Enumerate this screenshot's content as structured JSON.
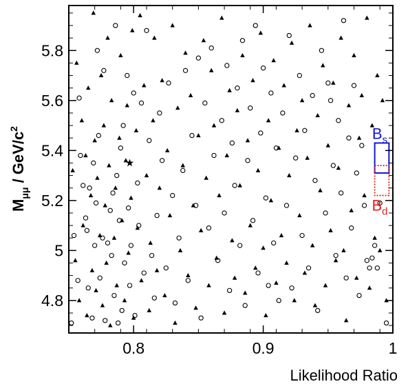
{
  "chart_data": {
    "type": "scatter",
    "title": "",
    "xlabel": "Likelihood Ratio",
    "ylabel": {
      "main": "M",
      "sub": "μμ",
      "rest": " / GeV/c",
      "sup": "2"
    },
    "xlim": [
      0.75,
      1.0
    ],
    "ylim": [
      4.67,
      5.98
    ],
    "grid": false,
    "x_ticks": [
      {
        "v": 0.8,
        "label": "0.8"
      },
      {
        "v": 0.9,
        "label": "0.9"
      },
      {
        "v": 1.0,
        "label": "1"
      }
    ],
    "y_ticks": [
      {
        "v": 4.8,
        "label": "4.8"
      },
      {
        "v": 5.0,
        "label": "5"
      },
      {
        "v": 5.2,
        "label": "5.2"
      },
      {
        "v": 5.4,
        "label": "5.4"
      },
      {
        "v": 5.6,
        "label": "5.6"
      },
      {
        "v": 5.8,
        "label": "5.8"
      }
    ],
    "signal_boxes": [
      {
        "label": "B",
        "sub": "s",
        "x_range": [
          0.986,
          0.997
        ],
        "y_range": [
          5.31,
          5.43
        ],
        "color": "#1414d2",
        "style": "solid"
      },
      {
        "label": "B",
        "sub": "d",
        "x_range": [
          0.986,
          0.997
        ],
        "y_range": [
          5.22,
          5.34
        ],
        "color": "#e61e1e",
        "style": "dotted"
      }
    ],
    "series": [
      {
        "marker": "circle-open",
        "points": [
          [
            0.752,
            4.71
          ],
          [
            0.754,
            5.06
          ],
          [
            0.757,
            4.88
          ],
          [
            0.758,
            5.61
          ],
          [
            0.759,
            5.38
          ],
          [
            0.761,
            5.26
          ],
          [
            0.763,
            5.13
          ],
          [
            0.764,
            5.08
          ],
          [
            0.765,
            4.85
          ],
          [
            0.766,
            5.25
          ],
          [
            0.768,
            4.73
          ],
          [
            0.769,
            5.35
          ],
          [
            0.77,
            5.02
          ],
          [
            0.771,
            5.19
          ],
          [
            0.772,
            5.8
          ],
          [
            0.773,
            5.46
          ],
          [
            0.774,
            4.89
          ],
          [
            0.776,
            5.05
          ],
          [
            0.777,
            5.72
          ],
          [
            0.778,
            4.72
          ],
          [
            0.78,
            5.03
          ],
          [
            0.782,
            5.16
          ],
          [
            0.783,
            4.98
          ],
          [
            0.784,
            5.23
          ],
          [
            0.785,
            4.82
          ],
          [
            0.786,
            5.9
          ],
          [
            0.787,
            5.3
          ],
          [
            0.788,
            4.71
          ],
          [
            0.789,
            5.12
          ],
          [
            0.79,
            5.41
          ],
          [
            0.791,
            4.76
          ],
          [
            0.792,
            5.5
          ],
          [
            0.793,
            4.95
          ],
          [
            0.795,
            5.7
          ],
          [
            0.796,
            5.17
          ],
          [
            0.797,
            4.86
          ],
          [
            0.798,
            5.02
          ],
          [
            0.8,
            5.63
          ],
          [
            0.801,
            4.74
          ],
          [
            0.803,
            5.27
          ],
          [
            0.804,
            5.1
          ],
          [
            0.806,
            5.59
          ],
          [
            0.808,
            4.91
          ],
          [
            0.81,
            5.88
          ],
          [
            0.812,
            5.44
          ],
          [
            0.814,
            4.98
          ],
          [
            0.816,
            4.81
          ],
          [
            0.818,
            5.14
          ],
          [
            0.82,
            5.55
          ],
          [
            0.822,
            5.36
          ],
          [
            0.825,
            4.93
          ],
          [
            0.827,
            5.67
          ],
          [
            0.83,
            5.22
          ],
          [
            0.832,
            4.79
          ],
          [
            0.835,
            5.05
          ],
          [
            0.838,
            5.32
          ],
          [
            0.84,
            5.72
          ],
          [
            0.842,
            4.88
          ],
          [
            0.845,
            5.46
          ],
          [
            0.848,
            5.18
          ],
          [
            0.85,
            5.77
          ],
          [
            0.852,
            4.73
          ],
          [
            0.855,
            5.59
          ],
          [
            0.858,
            5.09
          ],
          [
            0.86,
            5.81
          ],
          [
            0.862,
            5.38
          ],
          [
            0.865,
            4.96
          ],
          [
            0.868,
            5.52
          ],
          [
            0.87,
            5.15
          ],
          [
            0.872,
            5.74
          ],
          [
            0.874,
            4.84
          ],
          [
            0.876,
            5.43
          ],
          [
            0.878,
            5.26
          ],
          [
            0.88,
            5.65
          ],
          [
            0.882,
            5.02
          ],
          [
            0.884,
            5.84
          ],
          [
            0.886,
            4.78
          ],
          [
            0.888,
            5.36
          ],
          [
            0.89,
            5.57
          ],
          [
            0.892,
            5.12
          ],
          [
            0.894,
            5.9
          ],
          [
            0.896,
            4.91
          ],
          [
            0.898,
            5.47
          ],
          [
            0.9,
            5.73
          ],
          [
            0.902,
            5.21
          ],
          [
            0.904,
            4.86
          ],
          [
            0.906,
            5.63
          ],
          [
            0.908,
            5.03
          ],
          [
            0.91,
            5.41
          ],
          [
            0.912,
            4.8
          ],
          [
            0.915,
            5.55
          ],
          [
            0.918,
            5.18
          ],
          [
            0.92,
            5.86
          ],
          [
            0.922,
            4.85
          ],
          [
            0.925,
            5.37
          ],
          [
            0.928,
            5.7
          ],
          [
            0.93,
            5.06
          ],
          [
            0.932,
            5.48
          ],
          [
            0.935,
            4.93
          ],
          [
            0.938,
            5.62
          ],
          [
            0.94,
            5.28
          ],
          [
            0.942,
            4.76
          ],
          [
            0.945,
            5.8
          ],
          [
            0.948,
            5.15
          ],
          [
            0.95,
            5.67
          ],
          [
            0.952,
            5.6
          ],
          [
            0.954,
            5.34
          ],
          [
            0.956,
            4.98
          ],
          [
            0.958,
            5.52
          ],
          [
            0.96,
            5.23
          ],
          [
            0.962,
            5.92
          ],
          [
            0.964,
            4.89
          ],
          [
            0.966,
            5.45
          ],
          [
            0.968,
            5.09
          ],
          [
            0.97,
            5.66
          ],
          [
            0.972,
            5.31
          ],
          [
            0.974,
            4.82
          ],
          [
            0.976,
            5.42
          ],
          [
            0.978,
            5.18
          ],
          [
            0.98,
            4.96
          ],
          [
            0.982,
            4.93
          ],
          [
            0.984,
            4.97
          ],
          [
            0.986,
            5.02
          ],
          [
            0.988,
            4.93
          ],
          [
            0.99,
            5.19
          ],
          [
            0.995,
            4.71
          ]
        ]
      },
      {
        "marker": "triangle-filled",
        "points": [
          [
            0.753,
            5.32
          ],
          [
            0.755,
            4.96
          ],
          [
            0.756,
            5.75
          ],
          [
            0.758,
            4.8
          ],
          [
            0.76,
            5.52
          ],
          [
            0.761,
            5.1
          ],
          [
            0.763,
            5.38
          ],
          [
            0.764,
            4.74
          ],
          [
            0.765,
            5.65
          ],
          [
            0.767,
            5.22
          ],
          [
            0.768,
            4.92
          ],
          [
            0.769,
            5.95
          ],
          [
            0.77,
            5.44
          ],
          [
            0.771,
            4.84
          ],
          [
            0.772,
            5.29
          ],
          [
            0.774,
            5.06
          ],
          [
            0.775,
            5.7
          ],
          [
            0.776,
            4.78
          ],
          [
            0.777,
            5.5
          ],
          [
            0.778,
            5.18
          ],
          [
            0.779,
            4.95
          ],
          [
            0.78,
            5.85
          ],
          [
            0.781,
            5.34
          ],
          [
            0.782,
            4.7
          ],
          [
            0.783,
            5.6
          ],
          [
            0.785,
            5.05
          ],
          [
            0.786,
            5.25
          ],
          [
            0.787,
            4.86
          ],
          [
            0.789,
            5.45
          ],
          [
            0.79,
            5.78
          ],
          [
            0.791,
            5.12
          ],
          [
            0.793,
            4.8
          ],
          [
            0.794,
            5.36
          ],
          [
            0.795,
            5.58
          ],
          [
            0.796,
            4.99
          ],
          [
            0.798,
            5.21
          ],
          [
            0.799,
            5.88
          ],
          [
            0.8,
            4.73
          ],
          [
            0.802,
            5.48
          ],
          [
            0.803,
            5.09
          ],
          [
            0.805,
            5.94
          ],
          [
            0.806,
            4.88
          ],
          [
            0.808,
            5.66
          ],
          [
            0.81,
            5.3
          ],
          [
            0.812,
            4.76
          ],
          [
            0.813,
            5.03
          ],
          [
            0.815,
            5.52
          ],
          [
            0.816,
            5.85
          ],
          [
            0.818,
            4.92
          ],
          [
            0.82,
            5.25
          ],
          [
            0.822,
            5.68
          ],
          [
            0.824,
            4.82
          ],
          [
            0.826,
            5.4
          ],
          [
            0.828,
            5.14
          ],
          [
            0.83,
            5.9
          ],
          [
            0.832,
            4.71
          ],
          [
            0.834,
            5.57
          ],
          [
            0.836,
            5.0
          ],
          [
            0.838,
            5.34
          ],
          [
            0.84,
            5.79
          ],
          [
            0.842,
            4.9
          ],
          [
            0.844,
            5.62
          ],
          [
            0.846,
            5.18
          ],
          [
            0.848,
            4.77
          ],
          [
            0.85,
            5.46
          ],
          [
            0.852,
            5.08
          ],
          [
            0.854,
            5.84
          ],
          [
            0.856,
            5.29
          ],
          [
            0.858,
            4.86
          ],
          [
            0.86,
            5.72
          ],
          [
            0.862,
            5.5
          ],
          [
            0.864,
            4.97
          ],
          [
            0.866,
            5.22
          ],
          [
            0.868,
            5.93
          ],
          [
            0.87,
            4.75
          ],
          [
            0.872,
            5.38
          ],
          [
            0.874,
            5.64
          ],
          [
            0.876,
            5.04
          ],
          [
            0.878,
            4.89
          ],
          [
            0.88,
            5.56
          ],
          [
            0.882,
            5.26
          ],
          [
            0.884,
            5.78
          ],
          [
            0.886,
            4.83
          ],
          [
            0.888,
            5.44
          ],
          [
            0.89,
            5.1
          ],
          [
            0.892,
            5.68
          ],
          [
            0.894,
            4.93
          ],
          [
            0.896,
            5.32
          ],
          [
            0.898,
            5.87
          ],
          [
            0.9,
            5.01
          ],
          [
            0.902,
            4.74
          ],
          [
            0.904,
            5.52
          ],
          [
            0.906,
            5.2
          ],
          [
            0.908,
            5.76
          ],
          [
            0.91,
            4.87
          ],
          [
            0.912,
            5.41
          ],
          [
            0.914,
            5.06
          ],
          [
            0.916,
            5.66
          ],
          [
            0.918,
            4.95
          ],
          [
            0.92,
            5.3
          ],
          [
            0.922,
            5.83
          ],
          [
            0.924,
            4.8
          ],
          [
            0.926,
            5.48
          ],
          [
            0.928,
            5.14
          ],
          [
            0.93,
            5.6
          ],
          [
            0.932,
            4.91
          ],
          [
            0.934,
            5.37
          ],
          [
            0.936,
            5.9
          ],
          [
            0.938,
            5.02
          ],
          [
            0.94,
            4.78
          ],
          [
            0.942,
            5.54
          ],
          [
            0.944,
            5.24
          ],
          [
            0.946,
            5.74
          ],
          [
            0.948,
            4.86
          ],
          [
            0.95,
            5.42
          ],
          [
            0.952,
            5.08
          ],
          [
            0.954,
            5.67
          ],
          [
            0.956,
            4.96
          ],
          [
            0.958,
            5.33
          ],
          [
            0.96,
            5.85
          ],
          [
            0.962,
            5.0
          ],
          [
            0.964,
            4.72
          ],
          [
            0.966,
            5.58
          ],
          [
            0.968,
            5.16
          ],
          [
            0.97,
            5.78
          ],
          [
            0.972,
            4.89
          ],
          [
            0.974,
            5.45
          ],
          [
            0.976,
            5.62
          ],
          [
            0.978,
            5.22
          ],
          [
            0.98,
            5.93
          ],
          [
            0.982,
            4.85
          ],
          [
            0.984,
            5.5
          ],
          [
            0.986,
            5.05
          ],
          [
            0.988,
            5.7
          ],
          [
            0.99,
            5.0
          ],
          [
            0.992,
            5.6
          ],
          [
            0.995,
            4.8
          ]
        ]
      },
      {
        "marker": "star-filled",
        "points": [
          [
            0.797,
            5.35
          ]
        ]
      }
    ]
  }
}
